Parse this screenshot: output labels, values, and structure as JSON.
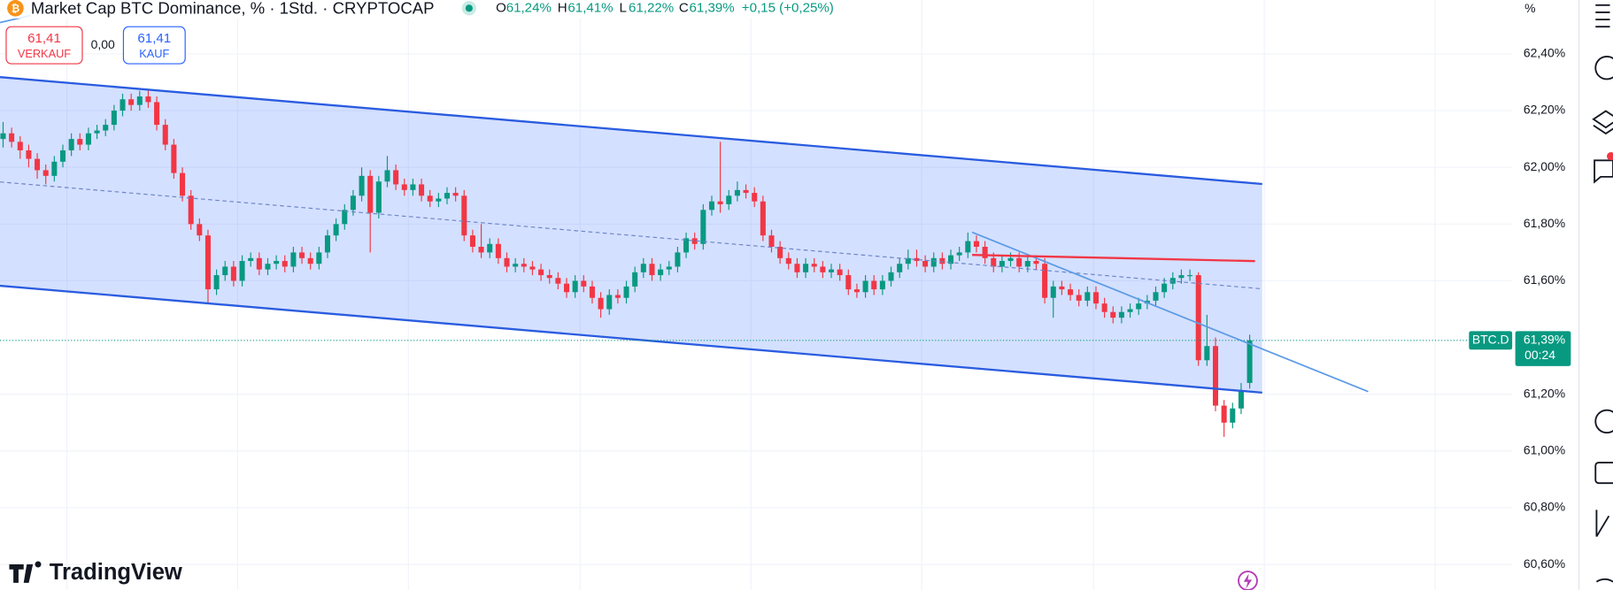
{
  "header": {
    "title": "Market Cap BTC Dominance, % · 1Std. · CRYPTOCAP",
    "ohlc": [
      {
        "key": "O",
        "value": "61,24%"
      },
      {
        "key": "H",
        "value": "61,41%"
      },
      {
        "key": "L",
        "value": "61,22%"
      },
      {
        "key": "C",
        "value": "61,39%"
      }
    ],
    "change": "+0,15 (+0,25%)"
  },
  "trade_buttons": {
    "sell": {
      "price": "61,41",
      "label": "VERKAUF"
    },
    "spread": "0,00",
    "buy": {
      "price": "61,41",
      "label": "KAUF"
    }
  },
  "branding": "TradingView",
  "chart_data": {
    "type": "candlestick",
    "up_color": "#089981",
    "down_color": "#f23645",
    "axis_unit": "%",
    "symbol_tag": "BTC.D",
    "last_price_label": "61,39%",
    "countdown": "00:24",
    "ylim": [
      60.51,
      62.59
    ],
    "yticks": [
      {
        "value": 62.4,
        "label": "62,40%"
      },
      {
        "value": 62.2,
        "label": "62,20%"
      },
      {
        "value": 62.0,
        "label": "62,00%"
      },
      {
        "value": 61.8,
        "label": "61,80%"
      },
      {
        "value": 61.6,
        "label": "61,60%"
      },
      {
        "value": 61.2,
        "label": "61,20%"
      },
      {
        "value": 61.0,
        "label": "61,00%"
      },
      {
        "value": 60.8,
        "label": "60,80%"
      },
      {
        "value": 60.6,
        "label": "60,60%"
      }
    ],
    "candles": [
      [
        62.1,
        62.16,
        62.07,
        62.12
      ],
      [
        62.12,
        62.14,
        62.07,
        62.09
      ],
      [
        62.09,
        62.11,
        62.03,
        62.06
      ],
      [
        62.06,
        62.08,
        62.0,
        62.03
      ],
      [
        62.03,
        62.05,
        61.96,
        61.99
      ],
      [
        61.99,
        62.01,
        61.94,
        61.97
      ],
      [
        61.97,
        62.04,
        61.95,
        62.02
      ],
      [
        62.02,
        62.08,
        62.0,
        62.06
      ],
      [
        62.06,
        62.12,
        62.04,
        62.1
      ],
      [
        62.1,
        62.12,
        62.06,
        62.08
      ],
      [
        62.08,
        62.14,
        62.06,
        62.12
      ],
      [
        62.12,
        62.15,
        62.1,
        62.13
      ],
      [
        62.13,
        62.17,
        62.11,
        62.15
      ],
      [
        62.15,
        62.22,
        62.13,
        62.2
      ],
      [
        62.2,
        62.26,
        62.18,
        62.24
      ],
      [
        62.24,
        62.26,
        62.2,
        62.22
      ],
      [
        62.22,
        62.27,
        62.2,
        62.25
      ],
      [
        62.25,
        62.27,
        62.21,
        62.23
      ],
      [
        62.23,
        62.25,
        62.13,
        62.15
      ],
      [
        62.15,
        62.17,
        62.06,
        62.08
      ],
      [
        62.08,
        62.1,
        61.96,
        61.98
      ],
      [
        61.98,
        62.0,
        61.88,
        61.9
      ],
      [
        61.9,
        61.92,
        61.78,
        61.8
      ],
      [
        61.8,
        61.82,
        61.74,
        61.76
      ],
      [
        61.76,
        61.78,
        61.52,
        61.57
      ],
      [
        61.57,
        61.64,
        61.55,
        61.62
      ],
      [
        61.62,
        61.67,
        61.6,
        61.65
      ],
      [
        61.65,
        61.67,
        61.58,
        61.6
      ],
      [
        61.6,
        61.69,
        61.58,
        61.67
      ],
      [
        61.67,
        61.7,
        61.65,
        61.68
      ],
      [
        61.68,
        61.7,
        61.62,
        61.64
      ],
      [
        61.64,
        61.68,
        61.62,
        61.66
      ],
      [
        61.66,
        61.69,
        61.64,
        61.67
      ],
      [
        61.67,
        61.69,
        61.63,
        61.65
      ],
      [
        61.65,
        61.72,
        61.63,
        61.7
      ],
      [
        61.7,
        61.72,
        61.66,
        61.68
      ],
      [
        61.68,
        61.7,
        61.64,
        61.66
      ],
      [
        61.66,
        61.72,
        61.64,
        61.7
      ],
      [
        61.7,
        61.78,
        61.68,
        61.76
      ],
      [
        61.76,
        61.82,
        61.74,
        61.8
      ],
      [
        61.8,
        61.87,
        61.78,
        61.85
      ],
      [
        61.85,
        61.92,
        61.83,
        61.9
      ],
      [
        61.9,
        62.0,
        61.88,
        61.97
      ],
      [
        61.97,
        61.99,
        61.7,
        61.84
      ],
      [
        61.84,
        61.97,
        61.82,
        61.95
      ],
      [
        61.95,
        62.04,
        61.93,
        61.99
      ],
      [
        61.99,
        62.01,
        61.92,
        61.94
      ],
      [
        61.94,
        61.96,
        61.9,
        61.92
      ],
      [
        61.92,
        61.96,
        61.9,
        61.94
      ],
      [
        61.94,
        61.96,
        61.88,
        61.9
      ],
      [
        61.9,
        61.92,
        61.86,
        61.88
      ],
      [
        61.88,
        61.91,
        61.86,
        61.89
      ],
      [
        61.89,
        61.93,
        61.87,
        61.91
      ],
      [
        61.91,
        61.93,
        61.88,
        61.9
      ],
      [
        61.9,
        61.92,
        61.74,
        61.76
      ],
      [
        61.76,
        61.78,
        61.7,
        61.72
      ],
      [
        61.72,
        61.8,
        61.68,
        61.7
      ],
      [
        61.7,
        61.75,
        61.68,
        61.73
      ],
      [
        61.73,
        61.75,
        61.66,
        61.68
      ],
      [
        61.68,
        61.7,
        61.63,
        61.65
      ],
      [
        61.65,
        61.68,
        61.63,
        61.66
      ],
      [
        61.66,
        61.68,
        61.63,
        61.65
      ],
      [
        61.65,
        61.67,
        61.62,
        61.64
      ],
      [
        61.64,
        61.66,
        61.6,
        61.62
      ],
      [
        61.62,
        61.64,
        61.59,
        61.61
      ],
      [
        61.61,
        61.63,
        61.57,
        61.59
      ],
      [
        61.59,
        61.61,
        61.54,
        61.56
      ],
      [
        61.56,
        61.62,
        61.54,
        61.6
      ],
      [
        61.6,
        61.62,
        61.56,
        61.58
      ],
      [
        61.58,
        61.6,
        61.52,
        61.54
      ],
      [
        61.54,
        61.56,
        61.47,
        61.5
      ],
      [
        61.5,
        61.57,
        61.48,
        61.55
      ],
      [
        61.55,
        61.57,
        61.52,
        61.54
      ],
      [
        61.54,
        61.6,
        61.52,
        61.58
      ],
      [
        61.58,
        61.65,
        61.56,
        61.63
      ],
      [
        61.63,
        61.68,
        61.61,
        61.66
      ],
      [
        61.66,
        61.68,
        61.6,
        61.62
      ],
      [
        61.62,
        61.66,
        61.6,
        61.64
      ],
      [
        61.64,
        61.67,
        61.62,
        61.65
      ],
      [
        61.65,
        61.72,
        61.63,
        61.7
      ],
      [
        61.7,
        61.77,
        61.68,
        61.75
      ],
      [
        61.75,
        61.77,
        61.71,
        61.73
      ],
      [
        61.73,
        61.87,
        61.71,
        61.85
      ],
      [
        61.85,
        61.9,
        61.83,
        61.88
      ],
      [
        61.88,
        62.09,
        61.84,
        61.87
      ],
      [
        61.87,
        61.92,
        61.85,
        61.9
      ],
      [
        61.9,
        61.95,
        61.88,
        61.92
      ],
      [
        61.92,
        61.94,
        61.89,
        61.91
      ],
      [
        61.91,
        61.93,
        61.86,
        61.88
      ],
      [
        61.88,
        61.9,
        61.74,
        61.76
      ],
      [
        61.76,
        61.78,
        61.7,
        61.72
      ],
      [
        61.72,
        61.74,
        61.66,
        61.68
      ],
      [
        61.68,
        61.7,
        61.64,
        61.66
      ],
      [
        61.66,
        61.68,
        61.61,
        61.63
      ],
      [
        61.63,
        61.68,
        61.61,
        61.66
      ],
      [
        61.66,
        61.68,
        61.63,
        61.65
      ],
      [
        61.65,
        61.67,
        61.61,
        61.63
      ],
      [
        61.63,
        61.66,
        61.61,
        61.64
      ],
      [
        61.64,
        61.66,
        61.6,
        61.62
      ],
      [
        61.62,
        61.64,
        61.55,
        61.57
      ],
      [
        61.57,
        61.59,
        61.54,
        61.56
      ],
      [
        61.56,
        61.62,
        61.54,
        61.6
      ],
      [
        61.6,
        61.62,
        61.55,
        61.57
      ],
      [
        61.57,
        61.62,
        61.55,
        61.6
      ],
      [
        61.6,
        61.65,
        61.58,
        61.63
      ],
      [
        61.63,
        61.68,
        61.61,
        61.66
      ],
      [
        61.66,
        61.71,
        61.64,
        61.68
      ],
      [
        61.68,
        61.71,
        61.65,
        61.67
      ],
      [
        61.67,
        61.69,
        61.63,
        61.65
      ],
      [
        61.65,
        61.7,
        61.63,
        61.68
      ],
      [
        61.68,
        61.7,
        61.64,
        61.66
      ],
      [
        61.66,
        61.71,
        61.64,
        61.69
      ],
      [
        61.69,
        61.72,
        61.67,
        61.7
      ],
      [
        61.7,
        61.77,
        61.68,
        61.74
      ],
      [
        61.74,
        61.76,
        61.7,
        61.72
      ],
      [
        61.72,
        61.74,
        61.66,
        61.68
      ],
      [
        61.68,
        61.7,
        61.63,
        61.65
      ],
      [
        61.65,
        61.69,
        61.63,
        61.67
      ],
      [
        61.67,
        61.7,
        61.65,
        61.68
      ],
      [
        61.68,
        61.7,
        61.63,
        61.65
      ],
      [
        61.65,
        61.69,
        61.63,
        61.67
      ],
      [
        61.67,
        61.69,
        61.64,
        61.66
      ],
      [
        61.66,
        61.68,
        61.52,
        61.54
      ],
      [
        61.54,
        61.6,
        61.47,
        61.58
      ],
      [
        61.58,
        61.6,
        61.55,
        61.57
      ],
      [
        61.57,
        61.59,
        61.53,
        61.55
      ],
      [
        61.55,
        61.57,
        61.51,
        61.53
      ],
      [
        61.53,
        61.58,
        61.51,
        61.56
      ],
      [
        61.56,
        61.58,
        61.5,
        61.52
      ],
      [
        61.52,
        61.54,
        61.47,
        61.49
      ],
      [
        61.49,
        61.51,
        61.45,
        61.47
      ],
      [
        61.47,
        61.51,
        61.45,
        61.49
      ],
      [
        61.49,
        61.52,
        61.47,
        61.5
      ],
      [
        61.5,
        61.54,
        61.48,
        61.52
      ],
      [
        61.52,
        61.55,
        61.5,
        61.53
      ],
      [
        61.53,
        61.58,
        61.51,
        61.56
      ],
      [
        61.56,
        61.61,
        61.54,
        61.59
      ],
      [
        61.59,
        61.63,
        61.57,
        61.61
      ],
      [
        61.61,
        61.64,
        61.59,
        61.62
      ],
      [
        61.62,
        61.64,
        61.6,
        61.62
      ],
      [
        61.62,
        61.63,
        61.3,
        61.32
      ],
      [
        61.32,
        61.48,
        61.3,
        61.37
      ],
      [
        61.37,
        61.4,
        61.14,
        61.16
      ],
      [
        61.16,
        61.18,
        61.05,
        61.1
      ],
      [
        61.1,
        61.17,
        61.08,
        61.15
      ],
      [
        61.15,
        61.24,
        61.13,
        61.21
      ],
      [
        61.24,
        61.41,
        61.22,
        61.39
      ]
    ]
  }
}
